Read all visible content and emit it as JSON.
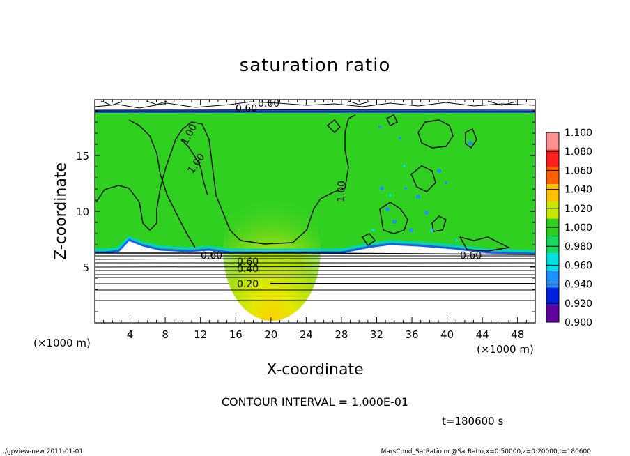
{
  "chart_data": {
    "type": "heatmap",
    "title": "saturation ratio",
    "xlabel": "X-coordinate",
    "ylabel": "Z-coordinate",
    "x_unit": "(×1000 m)",
    "y_unit": "(×1000 m)",
    "xlim": [
      0,
      50
    ],
    "ylim": [
      0,
      20
    ],
    "x_ticks": [
      "4",
      "8",
      "12",
      "16",
      "20",
      "24",
      "28",
      "32",
      "36",
      "40",
      "44",
      "48"
    ],
    "y_ticks": [
      "5",
      "10",
      "15"
    ],
    "contour_interval_text": "CONTOUR INTERVAL = 1.000E-01",
    "contour_levels": [
      0.2,
      0.4,
      0.6,
      1.0
    ],
    "contour_labels": [
      {
        "text": "0.20",
        "x": 17.6,
        "z": 3.5
      },
      {
        "text": "0.40",
        "x": 17.6,
        "z": 4.8
      },
      {
        "text": "0.60",
        "x": 17.6,
        "z": 5.5
      },
      {
        "text": "0.60",
        "x": 13.5,
        "z": 5.9
      },
      {
        "text": "0.60",
        "x": 42.5,
        "z": 5.9
      },
      {
        "text": "0.60",
        "x": 19.5,
        "z": 19.6
      },
      {
        "text": "0.60",
        "x": 18.0,
        "z": 19.2
      },
      {
        "text": "1.00",
        "x": 11.5,
        "z": 18.0
      },
      {
        "text": "1.00",
        "x": 12.5,
        "z": 15.8
      },
      {
        "text": "1.00",
        "x": 28.0,
        "z": 12.3
      }
    ],
    "colorbar": {
      "ticks": [
        "1.100",
        "1.080",
        "1.060",
        "1.040",
        "1.020",
        "1.000",
        "0.980",
        "0.960",
        "0.940",
        "0.920",
        "0.900"
      ],
      "colors": [
        "#ff9090",
        "#ff2020",
        "#ff6000",
        "#ffc000",
        "#c8e800",
        "#30cc20",
        "#18d860",
        "#00e0e0",
        "#2090ff",
        "#0020e0",
        "#6000a0"
      ]
    },
    "time_text": "t=180600 s"
  },
  "footer": {
    "left": "./gpview-new   2011-01-01",
    "right": "MarsCond_SatRatio.nc@SatRatio,x=0:50000,z=0:20000,t=180600"
  },
  "colors": {
    "field_green": "#30d020",
    "axis": "#000000"
  }
}
